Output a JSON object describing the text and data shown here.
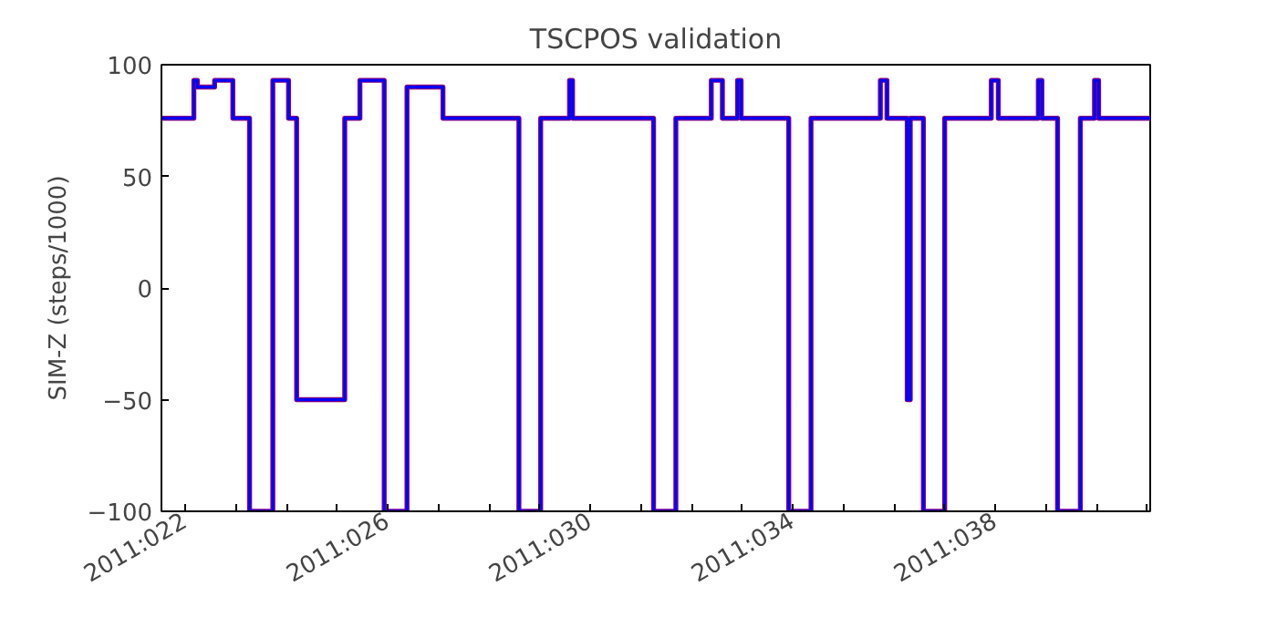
{
  "chart_data": {
    "type": "step",
    "title": "TSCPOS validation",
    "ylabel": "SIM-Z (steps/1000)",
    "x": [
      "2011-01-21T12:43",
      "2011-01-22T04:05",
      "2011-01-22T05:46",
      "2011-01-22T13:55",
      "2011-01-22T22:34",
      "2011-01-23T06:29",
      "2011-01-23T17:31",
      "2011-01-24T00:58",
      "2011-01-24T04:48",
      "2011-01-25T03:36",
      "2011-01-25T10:48",
      "2011-01-25T22:19",
      "2011-01-26T09:07",
      "2011-01-27T02:10",
      "2011-01-28T14:10",
      "2011-01-29T00:29",
      "2011-01-29T14:10",
      "2011-01-29T15:36",
      "2011-01-31T06:00",
      "2011-01-31T16:34",
      "2011-02-01T09:22",
      "2011-02-01T14:38",
      "2011-02-01T21:50",
      "2011-02-01T23:31",
      "2011-02-02T22:05",
      "2011-02-03T08:38",
      "2011-02-04T17:31",
      "2011-02-04T20:38",
      "2011-02-05T06:14",
      "2011-02-05T07:41",
      "2011-02-05T13:55",
      "2011-02-06T00:00",
      "2011-02-06T22:05",
      "2011-02-07T01:26",
      "2011-02-07T20:24",
      "2011-02-07T22:05",
      "2011-02-08T05:31",
      "2011-02-08T16:19",
      "2011-02-08T23:02",
      "2011-02-09T00:58",
      "2011-02-10T01:26"
    ],
    "series": [
      {
        "color": "#800080",
        "values": [
          76,
          93,
          90,
          93,
          76,
          -100,
          93,
          76,
          -50,
          76,
          93,
          -100,
          90,
          76,
          -100,
          76,
          93,
          76,
          -100,
          76,
          93,
          76,
          93,
          76,
          -100,
          76,
          93,
          76,
          -50,
          76,
          -100,
          76,
          93,
          76,
          93,
          76,
          -100,
          76,
          93,
          76,
          76
        ]
      },
      {
        "color": "#0000ff",
        "values": [
          76,
          93,
          90,
          93,
          76,
          -100,
          93,
          76,
          -50,
          76,
          93,
          -100,
          90,
          76,
          -100,
          76,
          93,
          76,
          -100,
          76,
          93,
          76,
          93,
          76,
          -100,
          76,
          93,
          76,
          -50,
          76,
          -100,
          76,
          93,
          76,
          93,
          76,
          -100,
          76,
          93,
          76,
          76
        ]
      }
    ],
    "xlim": [
      "2011-01-21T12:43",
      "2011-02-10T01:26"
    ],
    "ylim": [
      -100,
      100
    ],
    "xticks": [
      {
        "value": "2011-01-22",
        "label": "2011:022"
      },
      {
        "value": "2011-01-23",
        "label": null
      },
      {
        "value": "2011-01-24",
        "label": null
      },
      {
        "value": "2011-01-25",
        "label": null
      },
      {
        "value": "2011-01-26",
        "label": "2011:026"
      },
      {
        "value": "2011-01-27",
        "label": null
      },
      {
        "value": "2011-01-28",
        "label": null
      },
      {
        "value": "2011-01-29",
        "label": null
      },
      {
        "value": "2011-01-30",
        "label": "2011:030"
      },
      {
        "value": "2011-01-31",
        "label": null
      },
      {
        "value": "2011-02-01",
        "label": null
      },
      {
        "value": "2011-02-02",
        "label": null
      },
      {
        "value": "2011-02-03",
        "label": "2011:034"
      },
      {
        "value": "2011-02-04",
        "label": null
      },
      {
        "value": "2011-02-05",
        "label": null
      },
      {
        "value": "2011-02-06",
        "label": null
      },
      {
        "value": "2011-02-07",
        "label": "2011:038"
      },
      {
        "value": "2011-02-08",
        "label": null
      },
      {
        "value": "2011-02-09",
        "label": null
      },
      {
        "value": "2011-02-10",
        "label": null
      }
    ],
    "yticks": [
      -100,
      -50,
      0,
      50,
      100
    ],
    "grid": false,
    "marker": "none",
    "line_style": "solid"
  }
}
